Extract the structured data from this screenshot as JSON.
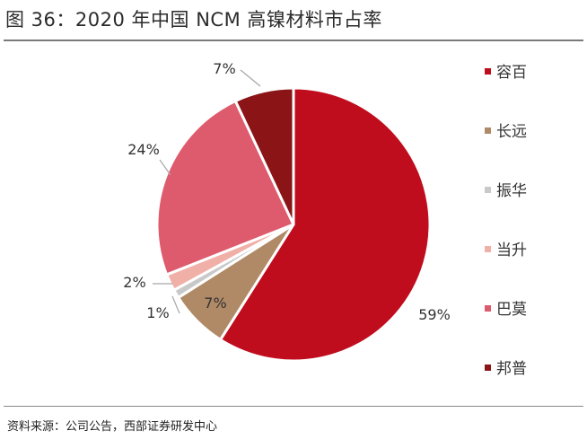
{
  "header": {
    "title": "图 36：2020 年中国 NCM 高镍材料市占率"
  },
  "footer": {
    "source": "资料来源：公司公告，西部证券研发中心"
  },
  "chart_data": {
    "type": "pie",
    "title": "图 36：2020 年中国 NCM 高镍材料市占率",
    "legend_position": "right",
    "slices": [
      {
        "label": "容百",
        "value": 59,
        "display": "59%",
        "color": "#c00d1e"
      },
      {
        "label": "长远",
        "value": 7,
        "display": "7%",
        "color": "#b08a66"
      },
      {
        "label": "振华",
        "value": 1,
        "display": "1%",
        "color": "#c9c9c9"
      },
      {
        "label": "当升",
        "value": 2,
        "display": "2%",
        "color": "#f0b0a8"
      },
      {
        "label": "巴莫",
        "value": 24,
        "display": "24%",
        "color": "#de5a6d"
      },
      {
        "label": "邦普",
        "value": 7,
        "display": "7%",
        "color": "#8b1417"
      }
    ]
  }
}
